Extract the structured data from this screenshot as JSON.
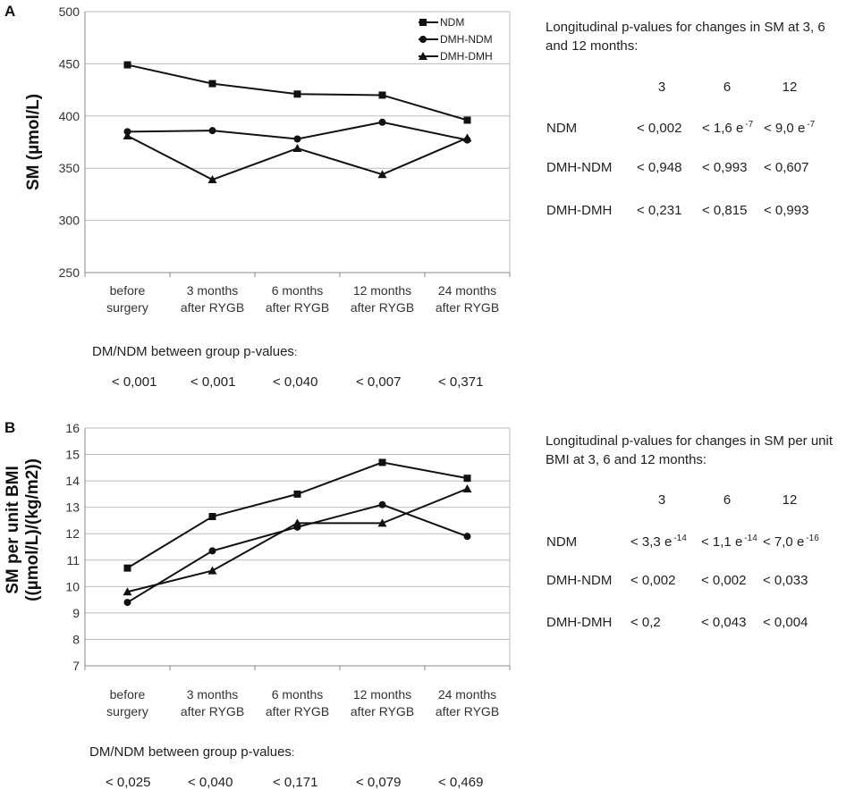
{
  "chart_data": [
    {
      "panel": "A",
      "type": "line",
      "ylabel": "SM (µmol/L)",
      "ylim": [
        250,
        500
      ],
      "yticks": [
        250,
        300,
        350,
        400,
        450,
        500
      ],
      "categories": [
        "before\nsurgery",
        "3 months\nafter RYGB",
        "6 months\nafter RYGB",
        "12 months\nafter RYGB",
        "24 months\nafter RYGB"
      ],
      "series": [
        {
          "name": "NDM",
          "marker": "square",
          "values": [
            449,
            431,
            421,
            420,
            396
          ]
        },
        {
          "name": "DMH-NDM",
          "marker": "circle",
          "values": [
            385,
            386,
            378,
            394,
            377
          ]
        },
        {
          "name": "DMH-DMH",
          "marker": "triangle",
          "values": [
            381,
            339,
            369,
            344,
            379
          ]
        }
      ],
      "legend_position": "top-right",
      "longitudinal": {
        "title_lines": [
          "Longitudinal p-values for changes in SM at 3, 6",
          "and 12 months:"
        ],
        "headers": [
          "3",
          "6",
          "12"
        ],
        "rows": [
          {
            "group": "NDM",
            "values": [
              {
                "base": "< 0,002",
                "exp": ""
              },
              {
                "base": "< 1,6 e",
                "exp": "-7"
              },
              {
                "base": "< 9,0 e",
                "exp": "-7"
              }
            ]
          },
          {
            "group": "DMH-NDM",
            "values": [
              {
                "base": "< 0,948",
                "exp": ""
              },
              {
                "base": "< 0,993",
                "exp": ""
              },
              {
                "base": "< 0,607",
                "exp": ""
              }
            ]
          },
          {
            "group": "DMH-DMH",
            "values": [
              {
                "base": "< 0,231",
                "exp": ""
              },
              {
                "base": "< 0,815",
                "exp": ""
              },
              {
                "base": "< 0,993",
                "exp": ""
              }
            ]
          }
        ]
      },
      "between_group": {
        "title": "DM/NDM between group p-values",
        "title_suffix": ":",
        "values": [
          "< 0,001",
          "< 0,001",
          "< 0,040",
          "< 0,007",
          "< 0,371"
        ]
      }
    },
    {
      "panel": "B",
      "type": "line",
      "ylabel_lines": [
        "SM per unit BMI",
        "((µmol/L)/(kg/m2))"
      ],
      "ylim": [
        7,
        16
      ],
      "yticks": [
        7,
        8,
        9,
        10,
        11,
        12,
        13,
        14,
        15,
        16
      ],
      "categories": [
        "before\nsurgery",
        "3 months\nafter RYGB",
        "6 months\nafter RYGB",
        "12 months\nafter RYGB",
        "24 months\nafter RYGB"
      ],
      "series": [
        {
          "name": "NDM",
          "marker": "square",
          "values": [
            10.7,
            12.65,
            13.5,
            14.7,
            14.1
          ]
        },
        {
          "name": "DMH-NDM",
          "marker": "circle",
          "values": [
            9.4,
            11.35,
            12.25,
            13.1,
            11.9
          ]
        },
        {
          "name": "DMH-DMH",
          "marker": "triangle",
          "values": [
            9.8,
            10.6,
            12.4,
            12.4,
            13.7
          ]
        }
      ],
      "longitudinal": {
        "title_lines": [
          "Longitudinal p-values for changes in SM per unit",
          "BMI at 3, 6 and 12 months:"
        ],
        "headers": [
          "3",
          "6",
          "12"
        ],
        "rows": [
          {
            "group": "NDM",
            "values": [
              {
                "base": "< 3,3 e",
                "exp": "-14"
              },
              {
                "base": "< 1,1 e",
                "exp": "-14"
              },
              {
                "base": "< 7,0 e",
                "exp": "-16"
              }
            ]
          },
          {
            "group": "DMH-NDM",
            "values": [
              {
                "base": "< 0,002",
                "exp": ""
              },
              {
                "base": "< 0,002",
                "exp": ""
              },
              {
                "base": "< 0,033",
                "exp": ""
              }
            ]
          },
          {
            "group": "DMH-DMH",
            "values": [
              {
                "base": "< 0,2",
                "exp": ""
              },
              {
                "base": "< 0,043",
                "exp": ""
              },
              {
                "base": "< 0,004",
                "exp": ""
              }
            ]
          }
        ]
      },
      "between_group": {
        "title": "DM/NDM between group p-values",
        "title_suffix": ":",
        "values": [
          "< 0,025",
          "< 0,040",
          "< 0,171",
          "< 0,079",
          "< 0,469"
        ]
      }
    }
  ]
}
